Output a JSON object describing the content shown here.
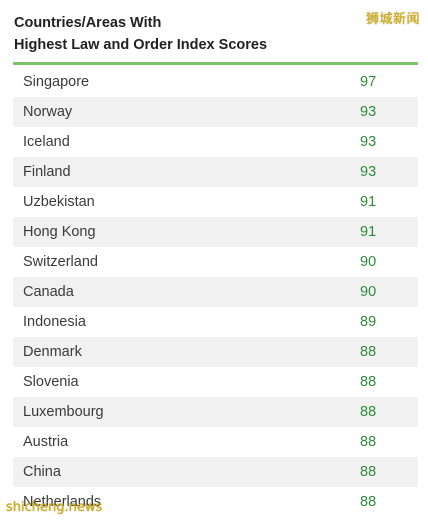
{
  "title_line1": "Countries/Areas With",
  "title_line2": "Highest Law and Order Index Scores",
  "watermark_top": "狮城新闻",
  "watermark_bottom": "shicheng.news",
  "colors": {
    "accent_rule": "#7ec46b",
    "score_text": "#2e8b3a",
    "stripe": "#f1f1f1"
  },
  "rows": [
    {
      "country": "Singapore",
      "score": "97"
    },
    {
      "country": "Norway",
      "score": "93"
    },
    {
      "country": "Iceland",
      "score": "93"
    },
    {
      "country": "Finland",
      "score": "93"
    },
    {
      "country": "Uzbekistan",
      "score": "91"
    },
    {
      "country": "Hong Kong",
      "score": "91"
    },
    {
      "country": "Switzerland",
      "score": "90"
    },
    {
      "country": "Canada",
      "score": "90"
    },
    {
      "country": "Indonesia",
      "score": "89"
    },
    {
      "country": "Denmark",
      "score": "88"
    },
    {
      "country": "Slovenia",
      "score": "88"
    },
    {
      "country": "Luxembourg",
      "score": "88"
    },
    {
      "country": "Austria",
      "score": "88"
    },
    {
      "country": "China",
      "score": "88"
    },
    {
      "country": "Netherlands",
      "score": "88"
    }
  ]
}
